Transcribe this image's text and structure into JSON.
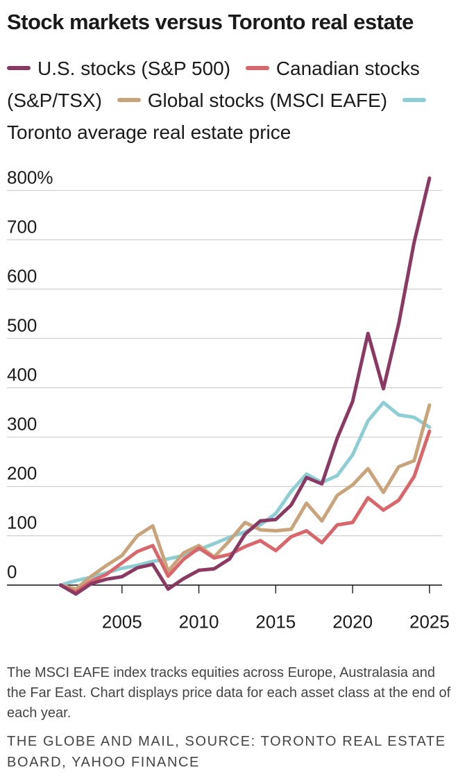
{
  "title": "Stock markets versus Toronto real estate",
  "note": "The MSCI EAFE index tracks equities across Europe, Australasia and the Far East. Chart displays price data for each asset class at the end of each year.",
  "source": "THE GLOBE AND MAIL, SOURCE: TORONTO REAL ESTATE BOARD, YAHOO FINANCE",
  "chart_data": {
    "type": "line",
    "title": "Stock markets versus Toronto real estate",
    "xlabel": "",
    "ylabel": "",
    "xlim": [
      2000,
      2025.5
    ],
    "ylim": [
      -30,
      830
    ],
    "grid": "horizontal",
    "legend_position": "top",
    "y_ticks": [
      {
        "value": 0,
        "label": "0"
      },
      {
        "value": 100,
        "label": "100"
      },
      {
        "value": 200,
        "label": "200"
      },
      {
        "value": 300,
        "label": "300"
      },
      {
        "value": 400,
        "label": "400"
      },
      {
        "value": 500,
        "label": "500"
      },
      {
        "value": 600,
        "label": "600"
      },
      {
        "value": 700,
        "label": "700"
      },
      {
        "value": 800,
        "label": "800%"
      }
    ],
    "x_ticks": [
      {
        "value": 2005,
        "label": "2005"
      },
      {
        "value": 2010,
        "label": "2010"
      },
      {
        "value": 2015,
        "label": "2015"
      },
      {
        "value": 2020,
        "label": "2020"
      },
      {
        "value": 2025,
        "label": "2025"
      }
    ],
    "x": [
      2001,
      2002,
      2003,
      2004,
      2005,
      2006,
      2007,
      2008,
      2009,
      2010,
      2011,
      2012,
      2013,
      2014,
      2015,
      2016,
      2017,
      2018,
      2019,
      2020,
      2021,
      2022,
      2023,
      2024,
      2025
    ],
    "series": [
      {
        "name": "U.S. stocks (S&P 500)",
        "color": "#8a3a62",
        "values": [
          0,
          -18,
          3,
          12,
          17,
          35,
          42,
          -8,
          13,
          30,
          33,
          53,
          103,
          130,
          133,
          162,
          218,
          205,
          298,
          372,
          510,
          398,
          530,
          695,
          825
        ]
      },
      {
        "name": "Canadian stocks (S&P/TSX)",
        "color": "#d9666a",
        "values": [
          0,
          -14,
          8,
          22,
          45,
          68,
          80,
          18,
          52,
          75,
          55,
          62,
          78,
          90,
          70,
          98,
          110,
          86,
          122,
          127,
          177,
          152,
          172,
          220,
          312
        ]
      },
      {
        "name": "Global stocks (MSCI EAFE)",
        "color": "#c9a47a",
        "values": [
          0,
          -8,
          18,
          40,
          60,
          100,
          120,
          28,
          65,
          80,
          57,
          90,
          127,
          112,
          110,
          113,
          166,
          130,
          182,
          203,
          236,
          188,
          240,
          252,
          365
        ]
      },
      {
        "name": "Toronto average real estate price",
        "color": "#8dcdd4",
        "values": [
          0,
          9,
          16,
          25,
          34,
          40,
          48,
          53,
          60,
          72,
          84,
          97,
          108,
          122,
          145,
          190,
          225,
          208,
          222,
          264,
          333,
          370,
          345,
          340,
          320
        ]
      }
    ]
  }
}
